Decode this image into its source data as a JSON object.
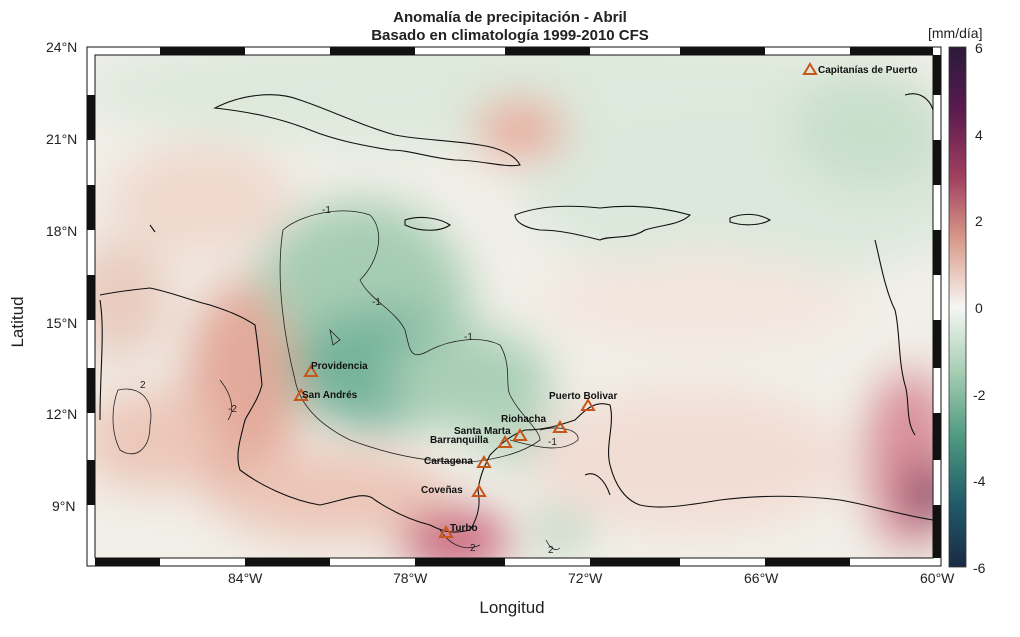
{
  "title_line1": "Anomalía de precipitación - Abril",
  "title_line2": "Basado en climatología 1999-2010 CFS",
  "axis_labels": {
    "x": "Longitud",
    "y": "Latitud"
  },
  "lat_ticks": [
    "24°N",
    "21°N",
    "18°N",
    "15°N",
    "12°N",
    "9°N"
  ],
  "lon_ticks": [
    "84°W",
    "78°W",
    "72°W",
    "66°W",
    "60°W"
  ],
  "colorbar": {
    "unit": "[mm/día]",
    "ticks": [
      "6",
      "4",
      "2",
      "0",
      "-2",
      "-4",
      "-6"
    ],
    "range": [
      -6,
      6
    ],
    "colors": [
      "#2a1a3c",
      "#1f5a6a",
      "#4e9a80",
      "#a9d0b5",
      "#f6f6f4",
      "#e6b0a0",
      "#c7615a",
      "#8f2a56",
      "#3a0f3a"
    ]
  },
  "legend_label": "Capitanías de Puerto",
  "marker_color": "#c8561a",
  "ports": [
    "Providencia",
    "San Andrés",
    "Puerto Bolivar",
    "Riohacha",
    "Santa Marta",
    "Barranquilla",
    "Cartagena",
    "Coveñas",
    "Turbo"
  ],
  "contour_labels": [
    "-1",
    "-1",
    "-1",
    "-1",
    "-2",
    "2",
    "2",
    "2"
  ]
}
